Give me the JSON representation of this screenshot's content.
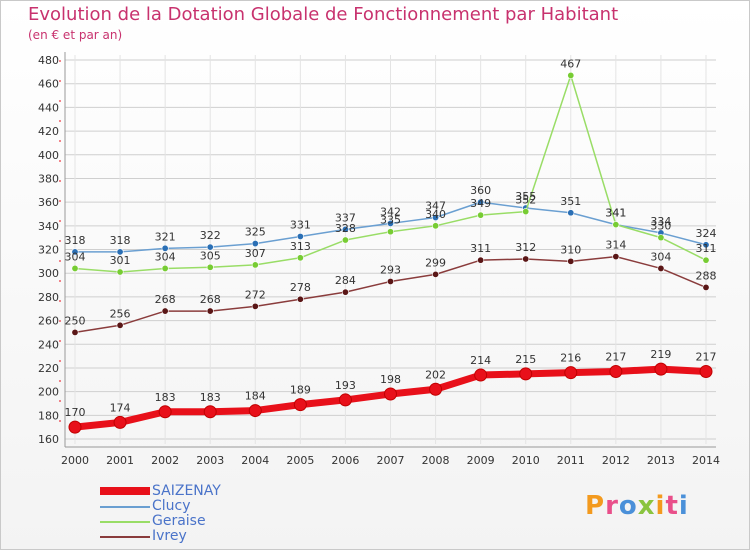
{
  "header": {
    "title": "Evolution de la Dotation Globale de Fonctionnement par Habitant",
    "subtitle": "(en € et par an)"
  },
  "logo_text": "Proxiti",
  "colors": {
    "title": "#c8326e",
    "axis_text": "#333333",
    "grid": "#cfcfcf"
  },
  "chart_data": {
    "type": "line",
    "x": [
      "2000",
      "2001",
      "2002",
      "2003",
      "2004",
      "2005",
      "2006",
      "2007",
      "2008",
      "2009",
      "2010",
      "2011",
      "2012",
      "2013",
      "2014"
    ],
    "ylim": [
      160,
      480
    ],
    "yticks": [
      160,
      180,
      200,
      220,
      240,
      260,
      280,
      300,
      320,
      340,
      360,
      380,
      400,
      420,
      440,
      460,
      480
    ],
    "grid": true,
    "legend_position": "bottom-left",
    "series": [
      {
        "name": "SAIZENAY",
        "color": "#e8101a",
        "marker": "#e8101a",
        "width": 7,
        "values": [
          170,
          174,
          183,
          183,
          184,
          189,
          193,
          198,
          202,
          214,
          215,
          216,
          217,
          219,
          217
        ]
      },
      {
        "name": "Clucy",
        "color": "#6a9fd1",
        "marker": "#2a6fb5",
        "width": 1.5,
        "values": [
          318,
          318,
          321,
          322,
          325,
          331,
          337,
          342,
          347,
          360,
          355,
          351,
          341,
          334,
          324
        ]
      },
      {
        "name": "Geraise",
        "color": "#99dd66",
        "marker": "#77cc33",
        "width": 1.5,
        "values": [
          304,
          301,
          304,
          305,
          307,
          313,
          328,
          335,
          340,
          349,
          352,
          467,
          341,
          330,
          311
        ]
      },
      {
        "name": "Ivrey",
        "color": "#8a3c3c",
        "marker": "#5a1616",
        "width": 1.5,
        "values": [
          250,
          256,
          268,
          268,
          272,
          278,
          284,
          293,
          299,
          311,
          312,
          310,
          314,
          304,
          288
        ]
      }
    ]
  }
}
